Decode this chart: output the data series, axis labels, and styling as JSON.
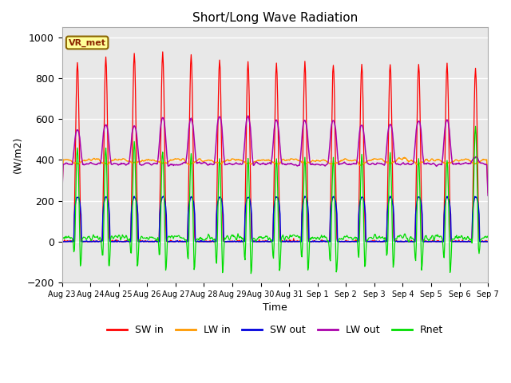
{
  "title": "Short/Long Wave Radiation",
  "ylabel": "(W/m2)",
  "xlabel": "Time",
  "ylim": [
    -200,
    1050
  ],
  "background_color": "#e8e8e8",
  "figure_color": "#ffffff",
  "grid_color": "#ffffff",
  "colors": {
    "SW_in": "#ff0000",
    "LW_in": "#ff9900",
    "SW_out": "#0000dd",
    "LW_out": "#aa00aa",
    "Rnet": "#00dd00"
  },
  "xtick_labels": [
    "Aug 23",
    "Aug 24",
    "Aug 25",
    "Aug 26",
    "Aug 27",
    "Aug 28",
    "Aug 29",
    "Aug 30",
    "Aug 31",
    "Sep 1",
    "Sep 2",
    "Sep 3",
    "Sep 4",
    "Sep 5",
    "Sep 6",
    "Sep 7"
  ],
  "annotation_text": "VR_met",
  "n_days": 15,
  "pts_per_day": 48,
  "SW_in_peak": [
    875,
    900,
    920,
    920,
    910,
    890,
    880,
    870,
    870,
    870,
    870,
    870,
    870,
    870,
    845
  ],
  "LW_in_base": 400,
  "LW_in_day_dip": 60,
  "LW_out_night": 380,
  "LW_out_day_peak": [
    550,
    575,
    575,
    610,
    610,
    615,
    620,
    600,
    600,
    595,
    575,
    575,
    600,
    600,
    415
  ],
  "SW_out_peak": 220,
  "Rnet_night": -80
}
